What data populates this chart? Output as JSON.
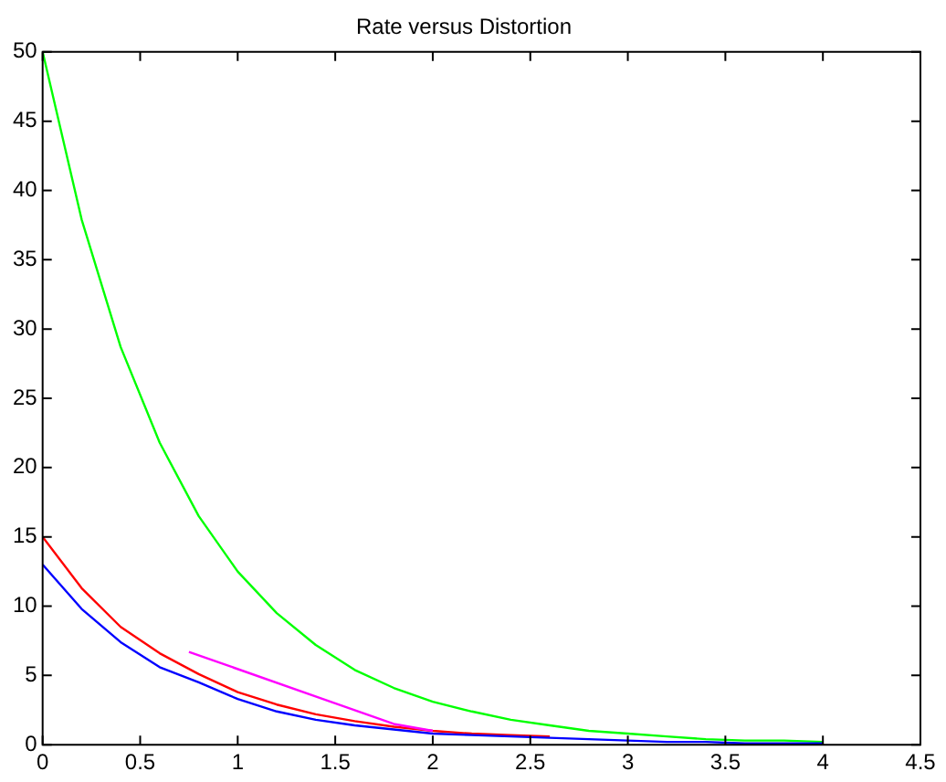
{
  "chart_data": {
    "type": "line",
    "title": "Rate versus Distortion",
    "xlim": [
      0,
      4.5
    ],
    "ylim": [
      0,
      50
    ],
    "xticks": [
      0,
      0.5,
      1,
      1.5,
      2,
      2.5,
      3,
      3.5,
      4,
      4.5
    ],
    "yticks": [
      0,
      5,
      10,
      15,
      20,
      25,
      30,
      35,
      40,
      45,
      50
    ],
    "grid": false,
    "legend": false,
    "marker": "none",
    "line_style": "solid",
    "series": [
      {
        "color": "#00ff00",
        "x": [
          0,
          0.2,
          0.4,
          0.6,
          0.8,
          1,
          1.2,
          1.4,
          1.6,
          1.8,
          2,
          2.2,
          2.4,
          2.6,
          2.8,
          3,
          3.2,
          3.4,
          3.6,
          3.8,
          4
        ],
        "values": [
          50,
          37.9,
          28.7,
          21.8,
          16.5,
          12.5,
          9.5,
          7.2,
          5.4,
          4.1,
          3.1,
          2.4,
          1.8,
          1.4,
          1.0,
          0.8,
          0.6,
          0.4,
          0.3,
          0.3,
          0.2
        ]
      },
      {
        "color": "#ff0000",
        "x": [
          0,
          0.2,
          0.4,
          0.6,
          0.8,
          1,
          1.2,
          1.4,
          1.6,
          1.8,
          2,
          2.2,
          2.4,
          2.6
        ],
        "values": [
          15,
          11.3,
          8.5,
          6.6,
          5.1,
          3.8,
          2.9,
          2.2,
          1.7,
          1.3,
          1.0,
          0.8,
          0.7,
          0.6
        ]
      },
      {
        "color": "#0000ff",
        "x": [
          0,
          0.2,
          0.4,
          0.6,
          0.8,
          1,
          1.2,
          1.4,
          1.6,
          1.8,
          2,
          2.2,
          2.4,
          2.6,
          2.8,
          3,
          3.2,
          3.4,
          3.6,
          3.8,
          4
        ],
        "values": [
          13,
          9.8,
          7.4,
          5.6,
          4.5,
          3.3,
          2.4,
          1.8,
          1.4,
          1.1,
          0.8,
          0.7,
          0.6,
          0.5,
          0.4,
          0.3,
          0.2,
          0.2,
          0.1,
          0.1,
          0.1
        ]
      },
      {
        "color": "#ff00ff",
        "x": [
          0.75,
          1.8,
          2.0
        ],
        "values": [
          6.7,
          1.5,
          1.0
        ]
      }
    ]
  }
}
